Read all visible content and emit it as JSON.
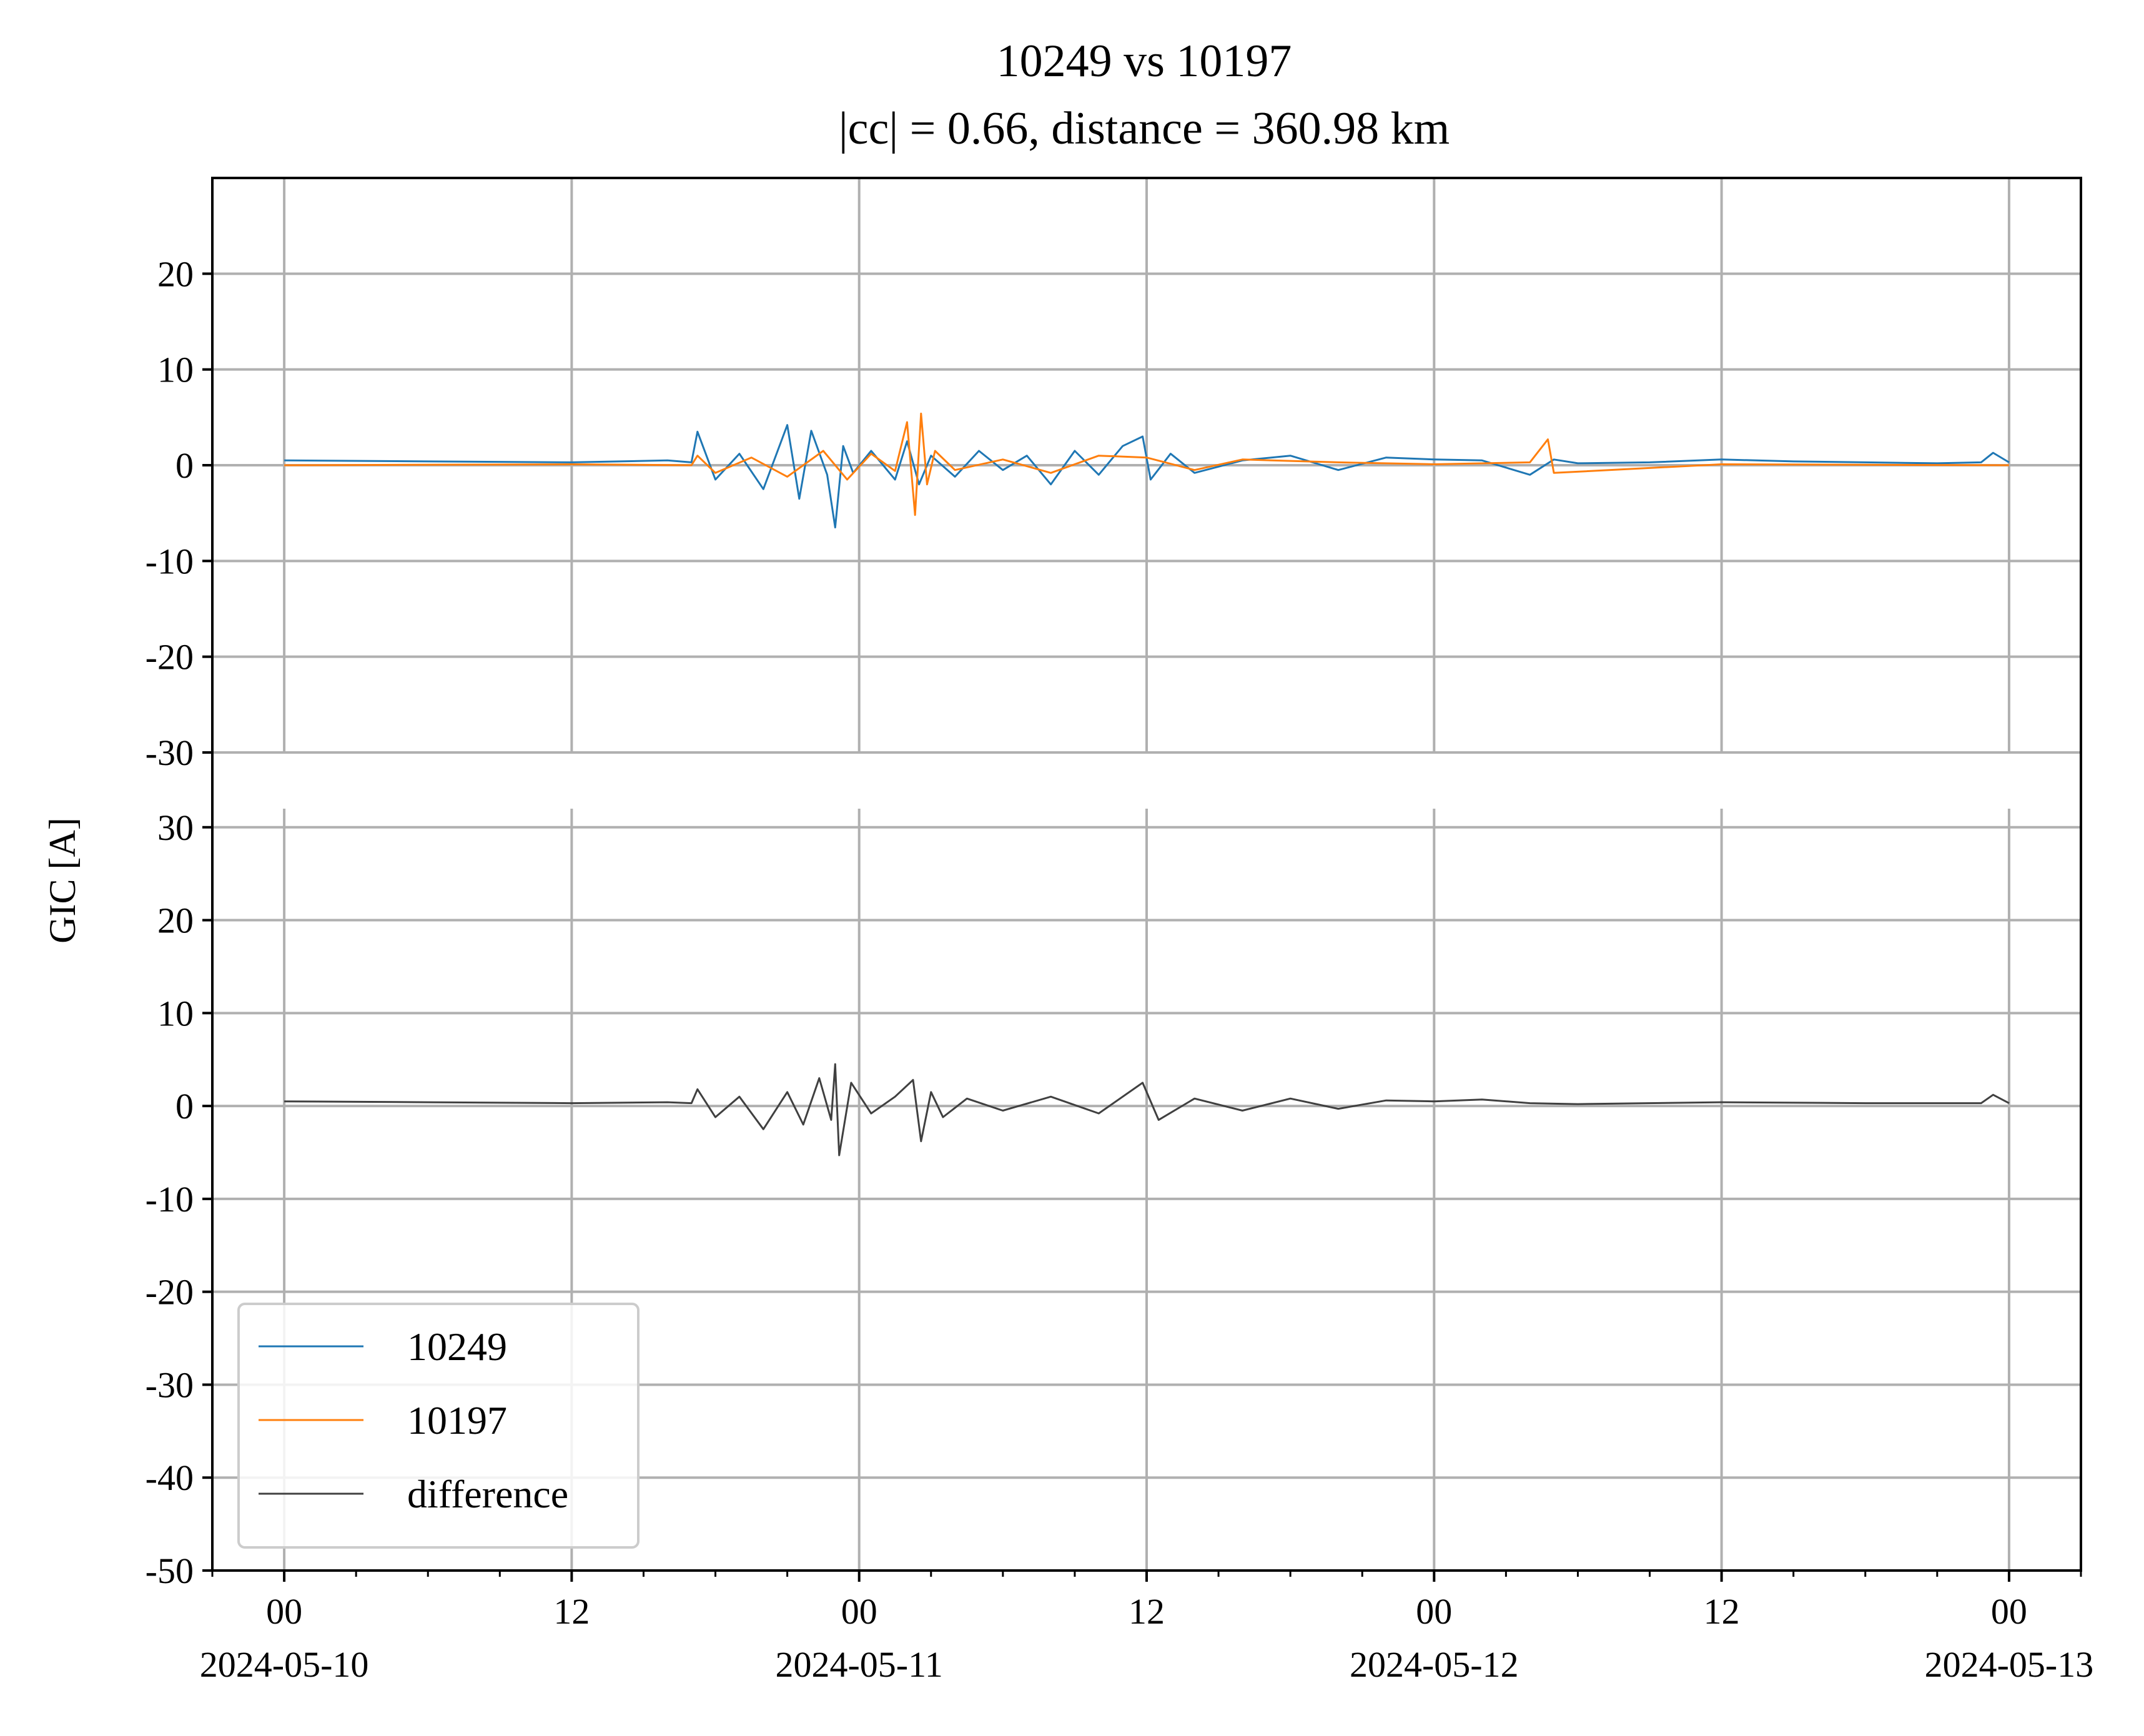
{
  "chart_data": {
    "type": "line",
    "title": "10249 vs 10197",
    "subtitle": "|cc| = 0.66, distance = 360.98 km",
    "ylabel": "GIC [A]",
    "xlabel": "",
    "grid": true,
    "legend_placement": "lower-left",
    "x_range": [
      "2024-05-09T21:00",
      "2024-05-13T03:00"
    ],
    "x_ticks": [
      {
        "time": "2024-05-10T00:00",
        "hour": "00",
        "date": "2024-05-10"
      },
      {
        "time": "2024-05-10T12:00",
        "hour": "12",
        "date": ""
      },
      {
        "time": "2024-05-11T00:00",
        "hour": "00",
        "date": "2024-05-11"
      },
      {
        "time": "2024-05-11T12:00",
        "hour": "12",
        "date": ""
      },
      {
        "time": "2024-05-12T00:00",
        "hour": "00",
        "date": "2024-05-12"
      },
      {
        "time": "2024-05-12T12:00",
        "hour": "12",
        "date": ""
      },
      {
        "time": "2024-05-13T00:00",
        "hour": "00",
        "date": "2024-05-13"
      }
    ],
    "panels": [
      {
        "name": "top",
        "ylim": [
          -30,
          30
        ],
        "yticks": [
          "20",
          "10",
          "0",
          "-10",
          "-20",
          "-30"
        ],
        "ytick_values": [
          20,
          10,
          0,
          -10,
          -20,
          -30
        ],
        "series": [
          {
            "name": "10249",
            "color": "#1f77b4",
            "x": [
              "2024-05-10T00:00",
              "2024-05-10T06:00",
              "2024-05-10T12:00",
              "2024-05-10T16:00",
              "2024-05-10T17:00",
              "2024-05-10T17:15",
              "2024-05-10T18:00",
              "2024-05-10T19:00",
              "2024-05-10T20:00",
              "2024-05-10T21:00",
              "2024-05-10T21:30",
              "2024-05-10T22:00",
              "2024-05-10T22:40",
              "2024-05-10T23:00",
              "2024-05-10T23:20",
              "2024-05-10T23:45",
              "2024-05-11T00:30",
              "2024-05-11T01:30",
              "2024-05-11T02:00",
              "2024-05-11T02:30",
              "2024-05-11T03:00",
              "2024-05-11T04:00",
              "2024-05-11T05:00",
              "2024-05-11T06:00",
              "2024-05-11T07:00",
              "2024-05-11T08:00",
              "2024-05-11T09:00",
              "2024-05-11T10:00",
              "2024-05-11T11:00",
              "2024-05-11T11:50",
              "2024-05-11T12:10",
              "2024-05-11T13:00",
              "2024-05-11T14:00",
              "2024-05-11T16:00",
              "2024-05-11T18:00",
              "2024-05-11T20:00",
              "2024-05-11T22:00",
              "2024-05-12T00:00",
              "2024-05-12T02:00",
              "2024-05-12T04:00",
              "2024-05-12T05:00",
              "2024-05-12T06:00",
              "2024-05-12T09:00",
              "2024-05-12T12:00",
              "2024-05-12T15:00",
              "2024-05-12T18:00",
              "2024-05-12T21:00",
              "2024-05-12T22:50",
              "2024-05-12T23:20",
              "2024-05-13T00:00"
            ],
            "y": [
              0.5,
              0.4,
              0.3,
              0.5,
              0.3,
              3.5,
              -1.5,
              1.2,
              -2.5,
              4.2,
              -3.5,
              3.6,
              -1.0,
              -6.5,
              2.0,
              -0.8,
              1.5,
              -1.5,
              2.5,
              -2.0,
              1.0,
              -1.2,
              1.5,
              -0.5,
              1.0,
              -2.0,
              1.5,
              -1.0,
              2.0,
              3.0,
              -1.5,
              1.2,
              -0.8,
              0.5,
              1.0,
              -0.5,
              0.8,
              0.6,
              0.5,
              -1.0,
              0.6,
              0.2,
              0.3,
              0.6,
              0.4,
              0.3,
              0.2,
              0.3,
              1.3,
              0.3
            ]
          },
          {
            "name": "10197",
            "color": "#ff7f0e",
            "x": [
              "2024-05-10T00:00",
              "2024-05-10T12:00",
              "2024-05-10T17:00",
              "2024-05-10T17:15",
              "2024-05-10T18:00",
              "2024-05-10T19:30",
              "2024-05-10T21:00",
              "2024-05-10T22:30",
              "2024-05-10T23:30",
              "2024-05-11T00:30",
              "2024-05-11T01:30",
              "2024-05-11T02:00",
              "2024-05-11T02:20",
              "2024-05-11T02:35",
              "2024-05-11T02:50",
              "2024-05-11T03:10",
              "2024-05-11T04:00",
              "2024-05-11T06:00",
              "2024-05-11T08:00",
              "2024-05-11T10:00",
              "2024-05-11T12:00",
              "2024-05-11T14:00",
              "2024-05-11T16:00",
              "2024-05-11T20:00",
              "2024-05-12T00:00",
              "2024-05-12T04:00",
              "2024-05-12T04:45",
              "2024-05-12T05:00",
              "2024-05-12T12:00",
              "2024-05-13T00:00"
            ],
            "y": [
              0.0,
              0.1,
              0.0,
              1.0,
              -0.8,
              0.8,
              -1.2,
              1.5,
              -1.5,
              1.2,
              -0.6,
              4.5,
              -5.2,
              5.4,
              -2.0,
              1.5,
              -0.5,
              0.6,
              -0.8,
              1.0,
              0.8,
              -0.5,
              0.6,
              0.3,
              0.1,
              0.3,
              2.7,
              -0.8,
              0.1,
              0.0
            ]
          }
        ]
      },
      {
        "name": "bottom",
        "ylim": [
          -50,
          32
        ],
        "yticks": [
          "30",
          "20",
          "10",
          "0",
          "-10",
          "-20",
          "-30",
          "-40",
          "-50"
        ],
        "ytick_values": [
          30,
          20,
          10,
          0,
          -10,
          -20,
          -30,
          -40,
          -50
        ],
        "series": [
          {
            "name": "difference",
            "color": "#404040",
            "x": [
              "2024-05-10T00:00",
              "2024-05-10T06:00",
              "2024-05-10T12:00",
              "2024-05-10T16:00",
              "2024-05-10T17:00",
              "2024-05-10T17:15",
              "2024-05-10T18:00",
              "2024-05-10T19:00",
              "2024-05-10T20:00",
              "2024-05-10T21:00",
              "2024-05-10T21:40",
              "2024-05-10T22:20",
              "2024-05-10T22:50",
              "2024-05-10T23:00",
              "2024-05-10T23:10",
              "2024-05-10T23:40",
              "2024-05-11T00:30",
              "2024-05-11T01:30",
              "2024-05-11T02:15",
              "2024-05-11T02:35",
              "2024-05-11T03:00",
              "2024-05-11T03:30",
              "2024-05-11T04:30",
              "2024-05-11T06:00",
              "2024-05-11T08:00",
              "2024-05-11T10:00",
              "2024-05-11T11:50",
              "2024-05-11T12:30",
              "2024-05-11T14:00",
              "2024-05-11T16:00",
              "2024-05-11T18:00",
              "2024-05-11T20:00",
              "2024-05-11T22:00",
              "2024-05-12T00:00",
              "2024-05-12T02:00",
              "2024-05-12T04:00",
              "2024-05-12T06:00",
              "2024-05-12T12:00",
              "2024-05-12T18:00",
              "2024-05-12T22:50",
              "2024-05-12T23:20",
              "2024-05-13T00:00"
            ],
            "y": [
              0.5,
              0.4,
              0.3,
              0.4,
              0.3,
              1.8,
              -1.2,
              1.0,
              -2.5,
              1.5,
              -2.0,
              3.0,
              -1.5,
              4.5,
              -5.3,
              2.5,
              -0.8,
              1.0,
              2.8,
              -3.8,
              1.5,
              -1.2,
              0.8,
              -0.5,
              1.0,
              -0.8,
              2.5,
              -1.5,
              0.8,
              -0.5,
              0.8,
              -0.3,
              0.6,
              0.5,
              0.7,
              0.3,
              0.2,
              0.4,
              0.3,
              0.3,
              1.2,
              0.3
            ]
          }
        ]
      }
    ],
    "legend": [
      {
        "label": "10249",
        "color": "#1f77b4"
      },
      {
        "label": "10197",
        "color": "#ff7f0e"
      },
      {
        "label": "difference",
        "color": "#404040"
      }
    ]
  }
}
